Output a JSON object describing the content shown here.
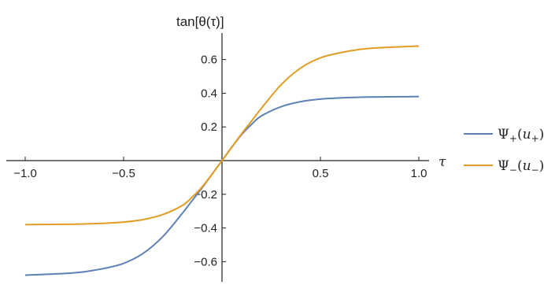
{
  "chart_data": {
    "type": "line",
    "xlabel": "τ",
    "ylabel": "tan[θ(τ)]",
    "xlim": [
      -1.0,
      1.0
    ],
    "ylim": [
      -0.74,
      0.76
    ],
    "x_ticks": [
      -1.0,
      -0.5,
      0.5,
      1.0
    ],
    "x_tick_labels": [
      "−1.0",
      "−0.5",
      "0.5",
      "1.0"
    ],
    "y_ticks": [
      -0.6,
      -0.4,
      -0.2,
      0.2,
      0.4,
      0.6
    ],
    "y_tick_labels": [
      "−0.6",
      "−0.4",
      "−0.2",
      "0.2",
      "0.4",
      "0.6"
    ],
    "grid": false,
    "legend_position": "right",
    "x": [
      -1.0,
      -0.9,
      -0.8,
      -0.7,
      -0.6,
      -0.5,
      -0.4,
      -0.3,
      -0.2,
      -0.15,
      -0.1,
      -0.05,
      0.0,
      0.05,
      0.1,
      0.15,
      0.2,
      0.3,
      0.4,
      0.5,
      0.6,
      0.7,
      0.8,
      0.9,
      1.0
    ],
    "series": [
      {
        "name": "Ψ+(u+)",
        "legend_main": "Ψ",
        "legend_sub1": "+",
        "legend_arg": "u",
        "legend_sub2": "+",
        "color": "#5E81B5",
        "values": [
          -0.68,
          -0.675,
          -0.67,
          -0.66,
          -0.64,
          -0.61,
          -0.55,
          -0.45,
          -0.31,
          -0.235,
          -0.16,
          -0.08,
          0.0,
          0.08,
          0.155,
          0.215,
          0.265,
          0.32,
          0.35,
          0.365,
          0.372,
          0.376,
          0.378,
          0.379,
          0.38
        ]
      },
      {
        "name": "Ψ−(u−)",
        "legend_main": "Ψ",
        "legend_sub1": "−",
        "legend_arg": "u",
        "legend_sub2": "−",
        "color": "#E19C24",
        "values": [
          -0.38,
          -0.379,
          -0.378,
          -0.376,
          -0.372,
          -0.365,
          -0.35,
          -0.32,
          -0.265,
          -0.215,
          -0.155,
          -0.08,
          0.0,
          0.08,
          0.16,
          0.235,
          0.31,
          0.45,
          0.55,
          0.61,
          0.64,
          0.66,
          0.67,
          0.675,
          0.68
        ]
      }
    ]
  }
}
